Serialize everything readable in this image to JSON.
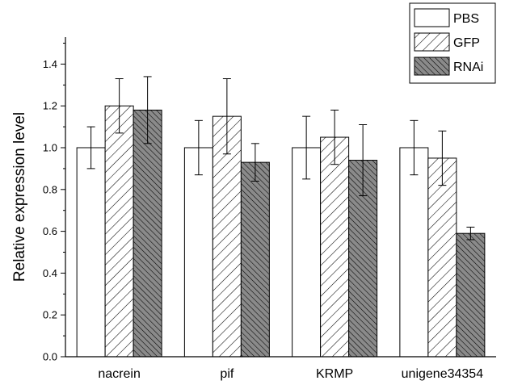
{
  "chart_data": {
    "type": "bar",
    "title": "",
    "xlabel": "",
    "ylabel": "Relative expression level",
    "categories": [
      "nacrein",
      "pif",
      "KRMP",
      "unigene34354"
    ],
    "series": [
      {
        "name": "PBS",
        "values": [
          1.0,
          1.0,
          1.0,
          1.0
        ],
        "errors": [
          0.1,
          0.13,
          0.15,
          0.13
        ],
        "pattern": "none"
      },
      {
        "name": "GFP",
        "values": [
          1.2,
          1.15,
          1.05,
          0.95
        ],
        "errors": [
          0.13,
          0.18,
          0.13,
          0.13
        ],
        "pattern": "sparse-hatch"
      },
      {
        "name": "RNAi",
        "values": [
          1.18,
          0.93,
          0.94,
          0.59
        ],
        "errors": [
          0.16,
          0.09,
          0.17,
          0.03
        ],
        "pattern": "dense-hatch-gray"
      }
    ],
    "ylim": [
      0,
      1.5
    ],
    "yticks": [
      "0.0",
      "0.2",
      "0.4",
      "0.6",
      "0.8",
      "1.0",
      "1.2",
      "1.4"
    ],
    "grid": false,
    "legend_position": "top-right",
    "colors": {
      "fill_plain": "#ffffff",
      "fill_dense": "#8a8a8a",
      "stroke": "#000000"
    }
  }
}
